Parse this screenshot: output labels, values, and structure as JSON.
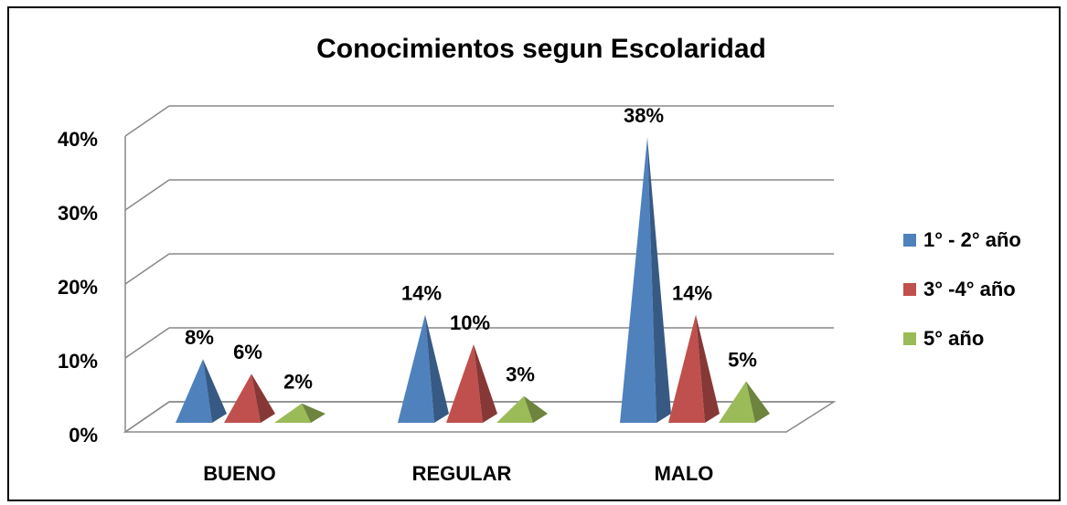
{
  "chart_data": {
    "type": "pyramid3d",
    "title": "Conocimientos segun Escolaridad",
    "categories": [
      "BUENO",
      "REGULAR",
      "MALO"
    ],
    "series": [
      {
        "name": "1° - 2° año",
        "color": "#4f81bd",
        "values": [
          8,
          14,
          38
        ],
        "value_labels": [
          "8%",
          "14%",
          "38%"
        ]
      },
      {
        "name": "3° -4° año",
        "color": "#c0504d",
        "values": [
          6,
          10,
          14
        ],
        "value_labels": [
          "6%",
          "10%",
          "14%"
        ]
      },
      {
        "name": "5° año",
        "color": "#9bbb59",
        "values": [
          2,
          3,
          5
        ],
        "value_labels": [
          "2%",
          "3%",
          "5%"
        ]
      }
    ],
    "ylim": [
      0,
      40
    ],
    "yticks": [
      {
        "value": 0,
        "label": "0%"
      },
      {
        "value": 10,
        "label": "10%"
      },
      {
        "value": 20,
        "label": "20%"
      },
      {
        "value": 30,
        "label": "30%"
      },
      {
        "value": 40,
        "label": "40%"
      }
    ],
    "grid": true,
    "legend": "right"
  }
}
